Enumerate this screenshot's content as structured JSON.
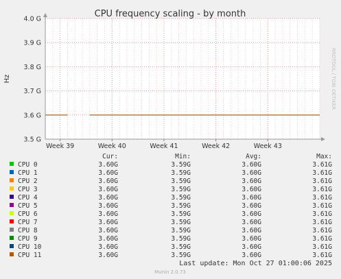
{
  "chart_data": {
    "type": "line",
    "title": "CPU frequency scaling - by month",
    "ylabel": "Hz",
    "xlabel": "",
    "side_label": "RRDTOOL / TOBI OETIKER",
    "ylim": [
      3.5,
      4.0
    ],
    "y_ticks": [
      {
        "value": 3.5,
        "label": "3.5 G"
      },
      {
        "value": 3.6,
        "label": "3.6 G"
      },
      {
        "value": 3.7,
        "label": "3.7 G"
      },
      {
        "value": 3.8,
        "label": "3.8 G"
      },
      {
        "value": 3.9,
        "label": "3.9 G"
      },
      {
        "value": 4.0,
        "label": "4.0 G"
      }
    ],
    "x_range": [
      "2025-09-20",
      "2025-10-27"
    ],
    "x_ticks": [
      {
        "date": "2025-09-22",
        "label": "Week 39"
      },
      {
        "date": "2025-09-29",
        "label": "Week 40"
      },
      {
        "date": "2025-10-06",
        "label": "Week 41"
      },
      {
        "date": "2025-10-13",
        "label": "Week 42"
      },
      {
        "date": "2025-10-20",
        "label": "Week 43"
      }
    ],
    "grid": true,
    "series_color": "#aa5500",
    "segments": [
      {
        "from": "2025-09-20",
        "to": "2025-09-23",
        "value": 3.6
      },
      {
        "from": "2025-09-26",
        "to": "2025-10-27",
        "value": 3.6
      }
    ],
    "legend": {
      "headers": [
        "Cur:",
        "Min:",
        "Avg:",
        "Max:"
      ],
      "rows": [
        {
          "name": "CPU 0",
          "color": "#00cc00",
          "cur": "3.60G",
          "min": "3.59G",
          "avg": "3.60G",
          "max": "3.61G"
        },
        {
          "name": "CPU 1",
          "color": "#0066b3",
          "cur": "3.60G",
          "min": "3.59G",
          "avg": "3.60G",
          "max": "3.61G"
        },
        {
          "name": "CPU 2",
          "color": "#ff8000",
          "cur": "3.60G",
          "min": "3.59G",
          "avg": "3.60G",
          "max": "3.61G"
        },
        {
          "name": "CPU 3",
          "color": "#ffcc00",
          "cur": "3.60G",
          "min": "3.59G",
          "avg": "3.60G",
          "max": "3.61G"
        },
        {
          "name": "CPU 4",
          "color": "#330099",
          "cur": "3.60G",
          "min": "3.59G",
          "avg": "3.60G",
          "max": "3.61G"
        },
        {
          "name": "CPU 5",
          "color": "#990099",
          "cur": "3.60G",
          "min": "3.59G",
          "avg": "3.60G",
          "max": "3.61G"
        },
        {
          "name": "CPU 6",
          "color": "#ccff00",
          "cur": "3.60G",
          "min": "3.59G",
          "avg": "3.60G",
          "max": "3.61G"
        },
        {
          "name": "CPU 7",
          "color": "#ff0000",
          "cur": "3.60G",
          "min": "3.59G",
          "avg": "3.60G",
          "max": "3.61G"
        },
        {
          "name": "CPU 8",
          "color": "#808080",
          "cur": "3.60G",
          "min": "3.59G",
          "avg": "3.60G",
          "max": "3.61G"
        },
        {
          "name": "CPU 9",
          "color": "#008f00",
          "cur": "3.60G",
          "min": "3.59G",
          "avg": "3.60G",
          "max": "3.61G"
        },
        {
          "name": "CPU 10",
          "color": "#00487d",
          "cur": "3.60G",
          "min": "3.59G",
          "avg": "3.60G",
          "max": "3.61G"
        },
        {
          "name": "CPU 11",
          "color": "#b35a00",
          "cur": "3.60G",
          "min": "3.59G",
          "avg": "3.60G",
          "max": "3.61G"
        }
      ]
    },
    "last_update": "Last update: Mon Oct 27 01:00:06 2025",
    "footer": "Munin 2.0.73"
  }
}
